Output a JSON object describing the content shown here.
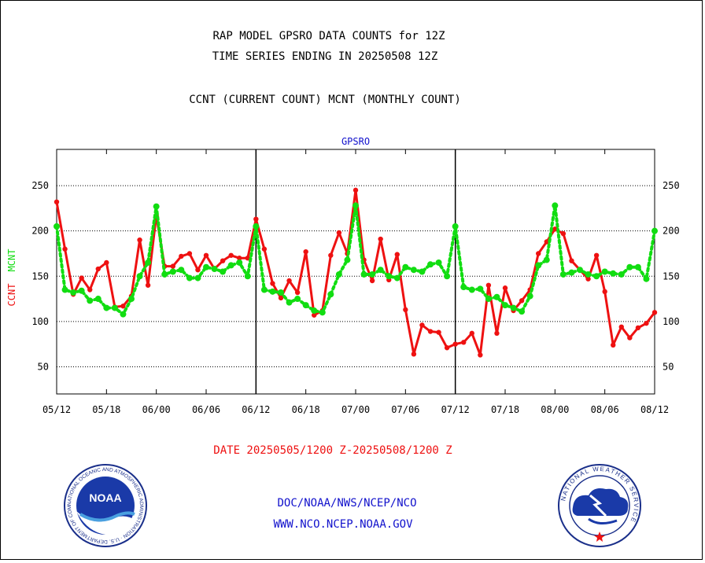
{
  "header": {
    "line1": "RAP MODEL GPSRO DATA COUNTS for 12Z",
    "line2": "TIME SERIES ENDING IN 20250508 12Z",
    "line3": "CCNT (CURRENT COUNT) MCNT (MONTHLY COUNT)"
  },
  "footer": {
    "date_range": "DATE 20250505/1200 Z-20250508/1200 Z",
    "org": "DOC/NOAA/NWS/NCEP/NCO",
    "url": "WWW.NCO.NCEP.NOAA.GOV"
  },
  "logos": {
    "left_text": "NOAA",
    "left_ring_text": "NATIONAL OCEANIC AND ATMOSPHERIC ADMINISTRATION · U.S. DEPARTMENT OF COMMERCE",
    "right_ring_text": "NATIONAL WEATHER SERVICE"
  },
  "colors": {
    "ccnt": "#ee1111",
    "mcnt": "#11dd11",
    "title": "#1111cc",
    "date": "#ee1111"
  },
  "chart_data": {
    "type": "line",
    "title": "GPSRO",
    "ylabel_ccnt": "CCNT",
    "ylabel_mcnt": "MCNT",
    "ylim": [
      20,
      290
    ],
    "yticks": [
      50,
      100,
      150,
      200,
      250
    ],
    "xticks": [
      "05/12",
      "05/18",
      "06/00",
      "06/06",
      "06/12",
      "06/18",
      "07/00",
      "07/06",
      "07/12",
      "07/18",
      "08/00",
      "08/06",
      "08/12"
    ],
    "grid": true,
    "series": [
      {
        "name": "CCNT",
        "color": "#ee1111",
        "style": "solid",
        "x": [
          0,
          1,
          2,
          3,
          4,
          5,
          6,
          7,
          8,
          9,
          10,
          11,
          12,
          13,
          14,
          15,
          16,
          17,
          18,
          19,
          20,
          21,
          22,
          23,
          24,
          25,
          26,
          27,
          28,
          29,
          30,
          31,
          32,
          33,
          34,
          35,
          36,
          37,
          38,
          39,
          40,
          41,
          42,
          43,
          44,
          45,
          46,
          47,
          48,
          49,
          50,
          51,
          52,
          53,
          54,
          55,
          56,
          57,
          58,
          59,
          60,
          61,
          62,
          63,
          64,
          65,
          66,
          67,
          68,
          69,
          70,
          71,
          72
        ],
        "values": [
          232,
          180,
          130,
          148,
          135,
          158,
          165,
          116,
          117,
          128,
          190,
          140,
          217,
          161,
          161,
          172,
          175,
          157,
          173,
          158,
          167,
          173,
          170,
          170,
          213,
          180,
          142,
          126,
          145,
          132,
          177,
          107,
          112,
          173,
          198,
          175,
          245,
          168,
          145,
          191,
          146,
          174,
          113,
          64,
          96,
          89,
          88,
          71,
          75,
          77,
          87,
          63,
          140,
          87,
          137,
          112,
          123,
          135,
          175,
          188,
          202,
          197,
          167,
          157,
          147,
          173,
          133,
          74,
          94,
          82,
          93,
          98,
          110
        ]
      },
      {
        "name": "MCNT",
        "color": "#11dd11",
        "style": "dotted",
        "x": [
          0,
          1,
          2,
          3,
          4,
          5,
          6,
          7,
          8,
          9,
          10,
          11,
          12,
          13,
          14,
          15,
          16,
          17,
          18,
          19,
          20,
          21,
          22,
          23,
          24,
          25,
          26,
          27,
          28,
          29,
          30,
          31,
          32,
          33,
          34,
          35,
          36,
          37,
          38,
          39,
          40,
          41,
          42,
          43,
          44,
          45,
          46,
          47,
          48,
          49,
          50,
          51,
          52,
          53,
          54,
          55,
          56,
          57,
          58,
          59,
          60,
          61,
          62,
          63,
          64,
          65,
          66,
          67,
          68,
          69,
          70,
          71,
          72
        ],
        "values": [
          205,
          135,
          132,
          134,
          123,
          125,
          115,
          115,
          108,
          125,
          150,
          165,
          227,
          152,
          155,
          157,
          148,
          148,
          160,
          158,
          155,
          162,
          165,
          150,
          205,
          135,
          133,
          132,
          121,
          125,
          118,
          112,
          110,
          130,
          152,
          168,
          228,
          152,
          152,
          157,
          150,
          148,
          160,
          157,
          155,
          163,
          165,
          150,
          205,
          138,
          135,
          136,
          125,
          127,
          118,
          115,
          111,
          128,
          162,
          168,
          228,
          152,
          154,
          157,
          152,
          150,
          155,
          153,
          152,
          160,
          160,
          147,
          200
        ]
      }
    ]
  }
}
